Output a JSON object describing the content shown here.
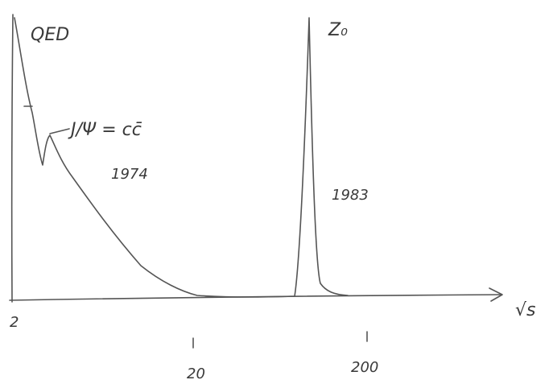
{
  "curve_labels": {
    "qed": "QED",
    "jpsi": "J/Ψ = cc̄",
    "jpsi_year": "1974",
    "z0": "Z₀",
    "z0_year": "1983"
  },
  "axis": {
    "x_label": "√s",
    "ticks": [
      2,
      20,
      200
    ]
  }
}
